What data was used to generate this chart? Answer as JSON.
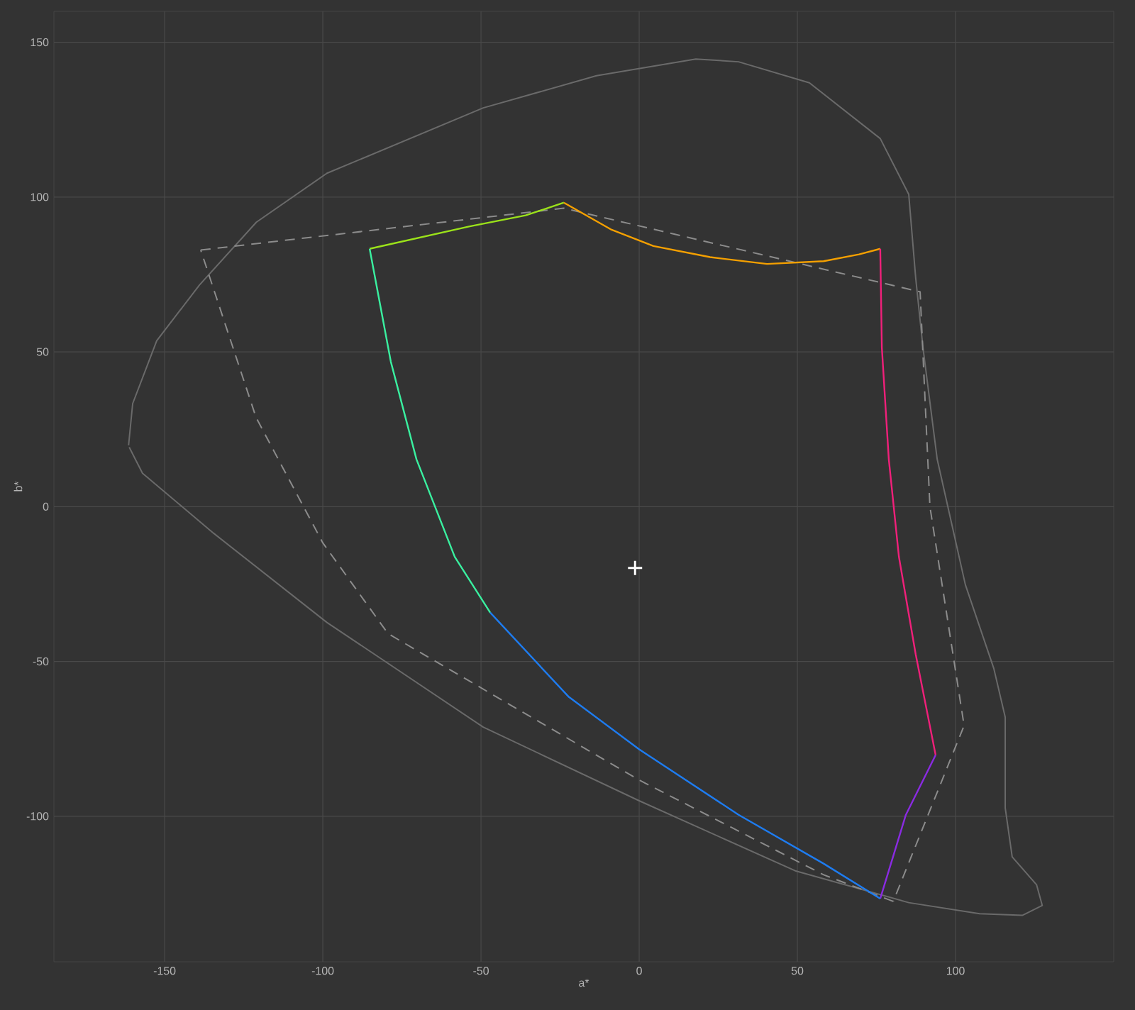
{
  "chart_data": {
    "type": "line",
    "xlabel": "a*",
    "ylabel": "b*",
    "xlim": [
      -185,
      150
    ],
    "ylim": [
      -147,
      160
    ],
    "xticks": [
      -150,
      -100,
      -50,
      0,
      50,
      100
    ],
    "yticks": [
      -100,
      -50,
      0,
      50,
      100,
      150
    ],
    "grid": true,
    "series": [
      {
        "color": "#6a6a6a",
        "line_style": "solid",
        "x": [
          -161.4,
          -160.1,
          -152.5,
          -139,
          -121,
          -98.7,
          -49.3,
          -13.5,
          17.9,
          31.4,
          53.8,
          76.2,
          85.2,
          87.4,
          89.7,
          94.2,
          103.1,
          112.1,
          115.7,
          115.7,
          117.9,
          125.6,
          127.4,
          121.1,
          107.6,
          85.2,
          49.3,
          0,
          -49.3,
          -98.7,
          -134.5,
          -157,
          -161.2
        ],
        "values": [
          19.8,
          33.3,
          53.6,
          71.6,
          91.9,
          107.7,
          128.8,
          139.2,
          144.6,
          143.7,
          136.9,
          118.9,
          100.9,
          73.9,
          51.4,
          15.3,
          -25.2,
          -52.3,
          -68,
          -97.3,
          -113.1,
          -122.1,
          -128.8,
          -132,
          -131.5,
          -127.9,
          -117.6,
          -95,
          -71.2,
          -37.4,
          -8.6,
          10.8,
          19.2
        ]
      },
      {
        "color": "#8c8c8c",
        "line_style": "dashed",
        "x": [
          -138.6,
          -23.8,
          88.8,
          91.9,
          102.7,
          80.3
        ],
        "values": [
          82.9,
          96.4,
          69.4,
          0,
          -70.7,
          -127.5
        ]
      },
      {
        "color": "#8c8c8c",
        "line_style": "dashed",
        "x": [
          80.3,
          58.3,
          0,
          -79.4,
          -100,
          -121.1,
          -138.6
        ],
        "values": [
          -127.5,
          -118.9,
          -88.3,
          -41,
          -11.7,
          28.8,
          82.9
        ]
      },
      {
        "color": "#9be21a",
        "line_style": "solid",
        "x": [
          -85.2,
          -53.8,
          -35.9,
          -23.8
        ],
        "values": [
          83.3,
          90.5,
          94.1,
          98.2
        ]
      },
      {
        "color": "#f5a000",
        "line_style": "solid",
        "x": [
          -23.8,
          -9,
          4.5,
          22.4,
          40.4,
          58.3,
          69.5,
          76.2
        ],
        "values": [
          98.2,
          89.6,
          84.2,
          80.6,
          78.4,
          79.3,
          81.5,
          83.3
        ]
      },
      {
        "color": "#f0207a",
        "line_style": "solid",
        "x": [
          76.2,
          76.7,
          78.9,
          82.1,
          87.4,
          93.7
        ],
        "values": [
          83.3,
          51.4,
          15.3,
          -16.2,
          -47.7,
          -80.2
        ]
      },
      {
        "color": "#8a2be2",
        "line_style": "solid",
        "x": [
          93.7,
          84.3,
          76.2
        ],
        "values": [
          -80.2,
          -99.5,
          -126.6
        ]
      },
      {
        "color": "#1e7cf0",
        "line_style": "solid",
        "x": [
          76.2,
          58.3,
          31.4,
          0,
          -22.4,
          -47.1
        ],
        "values": [
          -126.6,
          -115.3,
          -99.5,
          -78.4,
          -61.3,
          -34.2
        ]
      },
      {
        "color": "#3af0a0",
        "line_style": "solid",
        "x": [
          -47.1,
          -58.3,
          -70.4,
          -78.5,
          -85.2
        ],
        "values": [
          -34.2,
          -16.2,
          15.3,
          46.8,
          83.3
        ]
      },
      {
        "type": "scatter",
        "marker": "cross",
        "color": "#ffffff",
        "x": [
          -1.3
        ],
        "values": [
          -19.8
        ]
      }
    ]
  }
}
